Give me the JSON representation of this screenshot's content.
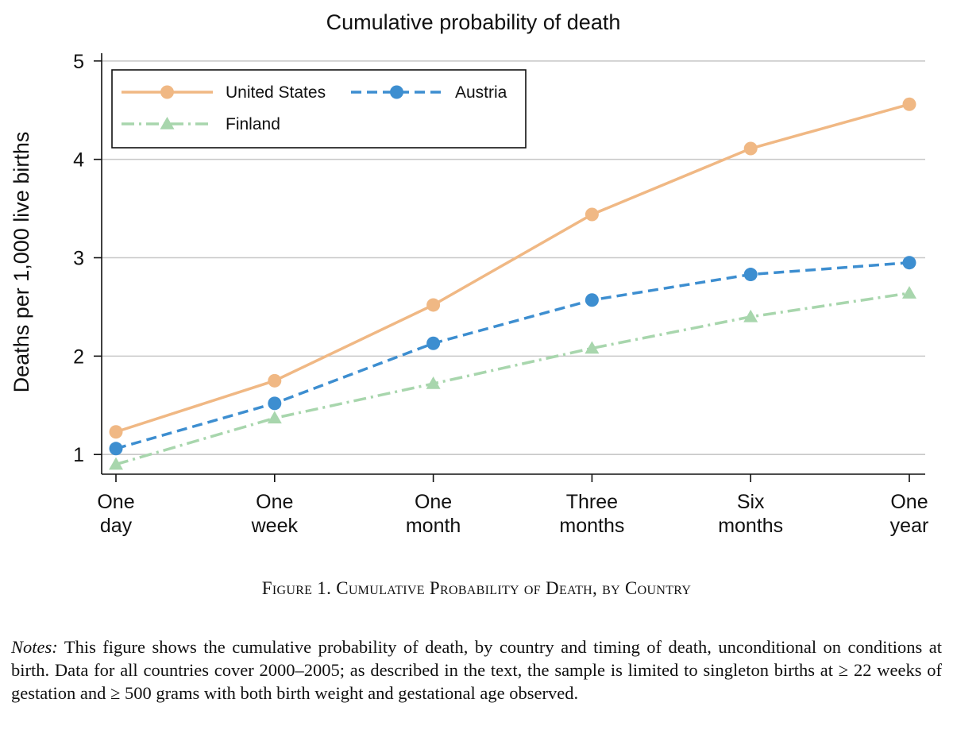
{
  "chart_data": {
    "type": "line",
    "title": "Cumulative probability of death",
    "ylabel": "Deaths per 1,000 live births",
    "xlabel": "",
    "ylim": [
      0.8,
      5.2
    ],
    "yticks": [
      1,
      2,
      3,
      4,
      5
    ],
    "grid": true,
    "legend_position": "top-left",
    "categories": [
      [
        "One",
        "day"
      ],
      [
        "One",
        "week"
      ],
      [
        "One",
        "month"
      ],
      [
        "Three",
        "months"
      ],
      [
        "Six",
        "months"
      ],
      [
        "One",
        "year"
      ]
    ],
    "series": [
      {
        "name": "United States",
        "values": [
          1.23,
          1.75,
          2.52,
          3.44,
          4.11,
          4.56
        ],
        "color": "#f0b884",
        "marker": "circle",
        "dash": "solid"
      },
      {
        "name": "Austria",
        "values": [
          1.06,
          1.52,
          2.13,
          2.57,
          2.83,
          2.95
        ],
        "color": "#3d8ed0",
        "marker": "circle",
        "dash": "dashed"
      },
      {
        "name": "Finland",
        "values": [
          0.9,
          1.37,
          1.72,
          2.08,
          2.4,
          2.64
        ],
        "color": "#a8d6ad",
        "marker": "triangle",
        "dash": "dashdot"
      }
    ]
  },
  "caption": "Figure 1. Cumulative Probability of Death, by Country",
  "notes": {
    "lead": "Notes:",
    "text": " This figure shows the cumulative probability of death, by country and timing of death, unconditional on conditions at birth. Data for all countries cover 2000–2005; as described in the text, the sample is limited to singleton births at ≥ 22 weeks of gestation and ≥ 500 grams with both birth weight and gestational age observed."
  }
}
